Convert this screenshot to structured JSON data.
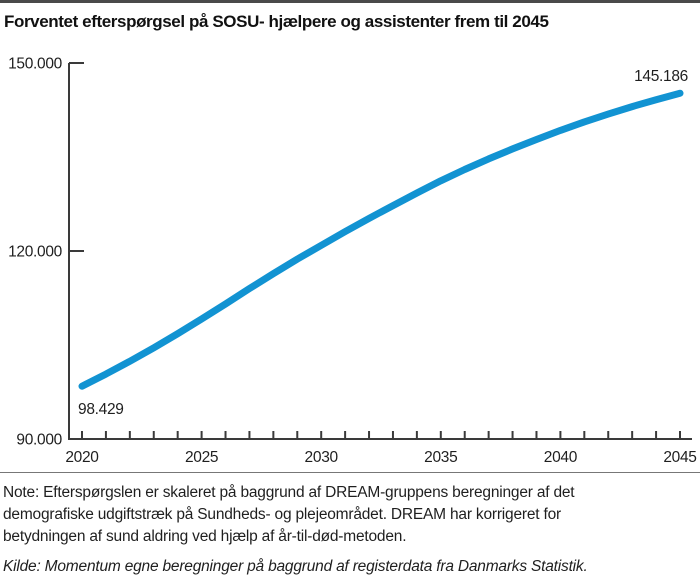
{
  "title": "Forventet efterspørgsel på SOSU- hjælpere og assistenter frem til 2045",
  "colors": {
    "line": "#1293d2",
    "axis": "#3a3a3a",
    "text": "#1f1f1f",
    "divider": "#777777",
    "top_border": "#4a4a4a",
    "background": "#ffffff"
  },
  "chart_data": {
    "type": "line",
    "title": "Forventet efterspørgsel på SOSU- hjælpere og assistenter frem til 2045",
    "x": [
      2020,
      2021,
      2022,
      2023,
      2024,
      2025,
      2026,
      2027,
      2028,
      2029,
      2030,
      2031,
      2032,
      2033,
      2034,
      2035,
      2036,
      2037,
      2038,
      2039,
      2040,
      2041,
      2042,
      2043,
      2044,
      2045
    ],
    "series": [
      {
        "name": "Forventet efterspørgsel",
        "values": [
          98429,
          100350,
          102400,
          104550,
          106800,
          109150,
          111550,
          114000,
          116400,
          118700,
          120900,
          123100,
          125200,
          127250,
          129250,
          131200,
          133000,
          134700,
          136300,
          137800,
          139250,
          140600,
          141850,
          143050,
          144150,
          145186
        ]
      }
    ],
    "ylim": [
      90000,
      150000
    ],
    "xlim": [
      2020,
      2045
    ],
    "y_tick_values": [
      150000,
      120000,
      90000
    ],
    "y_tick_labels": [
      "150.000",
      "120.000",
      "90.000"
    ],
    "x_tick_label_years": [
      2020,
      2025,
      2030,
      2035,
      2040,
      2045
    ],
    "x_tick_labels": [
      "2020",
      "2025",
      "2030",
      "2035",
      "2040",
      "2045"
    ],
    "start_point_label": "98.429",
    "end_point_label": "145.186",
    "grid": false,
    "legend": "none",
    "xlabel": "",
    "ylabel": ""
  },
  "note_lines": [
    "Note: Efterspørgslen er skaleret på baggrund af DREAM-gruppens beregninger af det",
    "demografiske udgiftstræk på Sundheds- og plejeområdet. DREAM har korrigeret for",
    "betydningen af sund aldring ved hjælp af år-til-død-metoden."
  ],
  "kilde": "Kilde: Momentum egne beregninger på baggrund af registerdata fra Danmarks Statistik."
}
